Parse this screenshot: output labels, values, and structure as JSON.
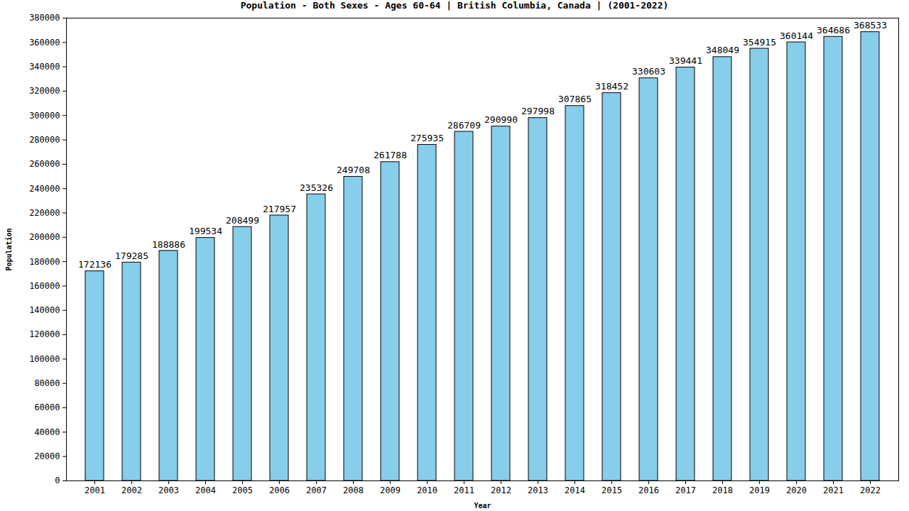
{
  "chart_data": {
    "type": "bar",
    "title": "Population - Both Sexes - Ages 60-64 | British Columbia, Canada |  (2001-2022)",
    "x_label": "Year",
    "y_label": "Population",
    "categories": [
      "2001",
      "2002",
      "2003",
      "2004",
      "2005",
      "2006",
      "2007",
      "2008",
      "2009",
      "2010",
      "2011",
      "2012",
      "2013",
      "2014",
      "2015",
      "2016",
      "2017",
      "2018",
      "2019",
      "2020",
      "2021",
      "2022"
    ],
    "values": [
      172136,
      179285,
      188886,
      199534,
      208499,
      217957,
      235326,
      249708,
      261788,
      275935,
      286709,
      290990,
      297998,
      307865,
      318452,
      330603,
      339441,
      348049,
      354915,
      360144,
      364686,
      368533
    ],
    "color": "#87ceeb",
    "ylim": [
      0,
      380000
    ],
    "yticks": [
      0,
      20000,
      40000,
      60000,
      80000,
      100000,
      120000,
      140000,
      160000,
      180000,
      200000,
      220000,
      240000,
      260000,
      280000,
      300000,
      320000,
      340000,
      360000,
      380000
    ],
    "grid": false,
    "data_labels": true
  }
}
